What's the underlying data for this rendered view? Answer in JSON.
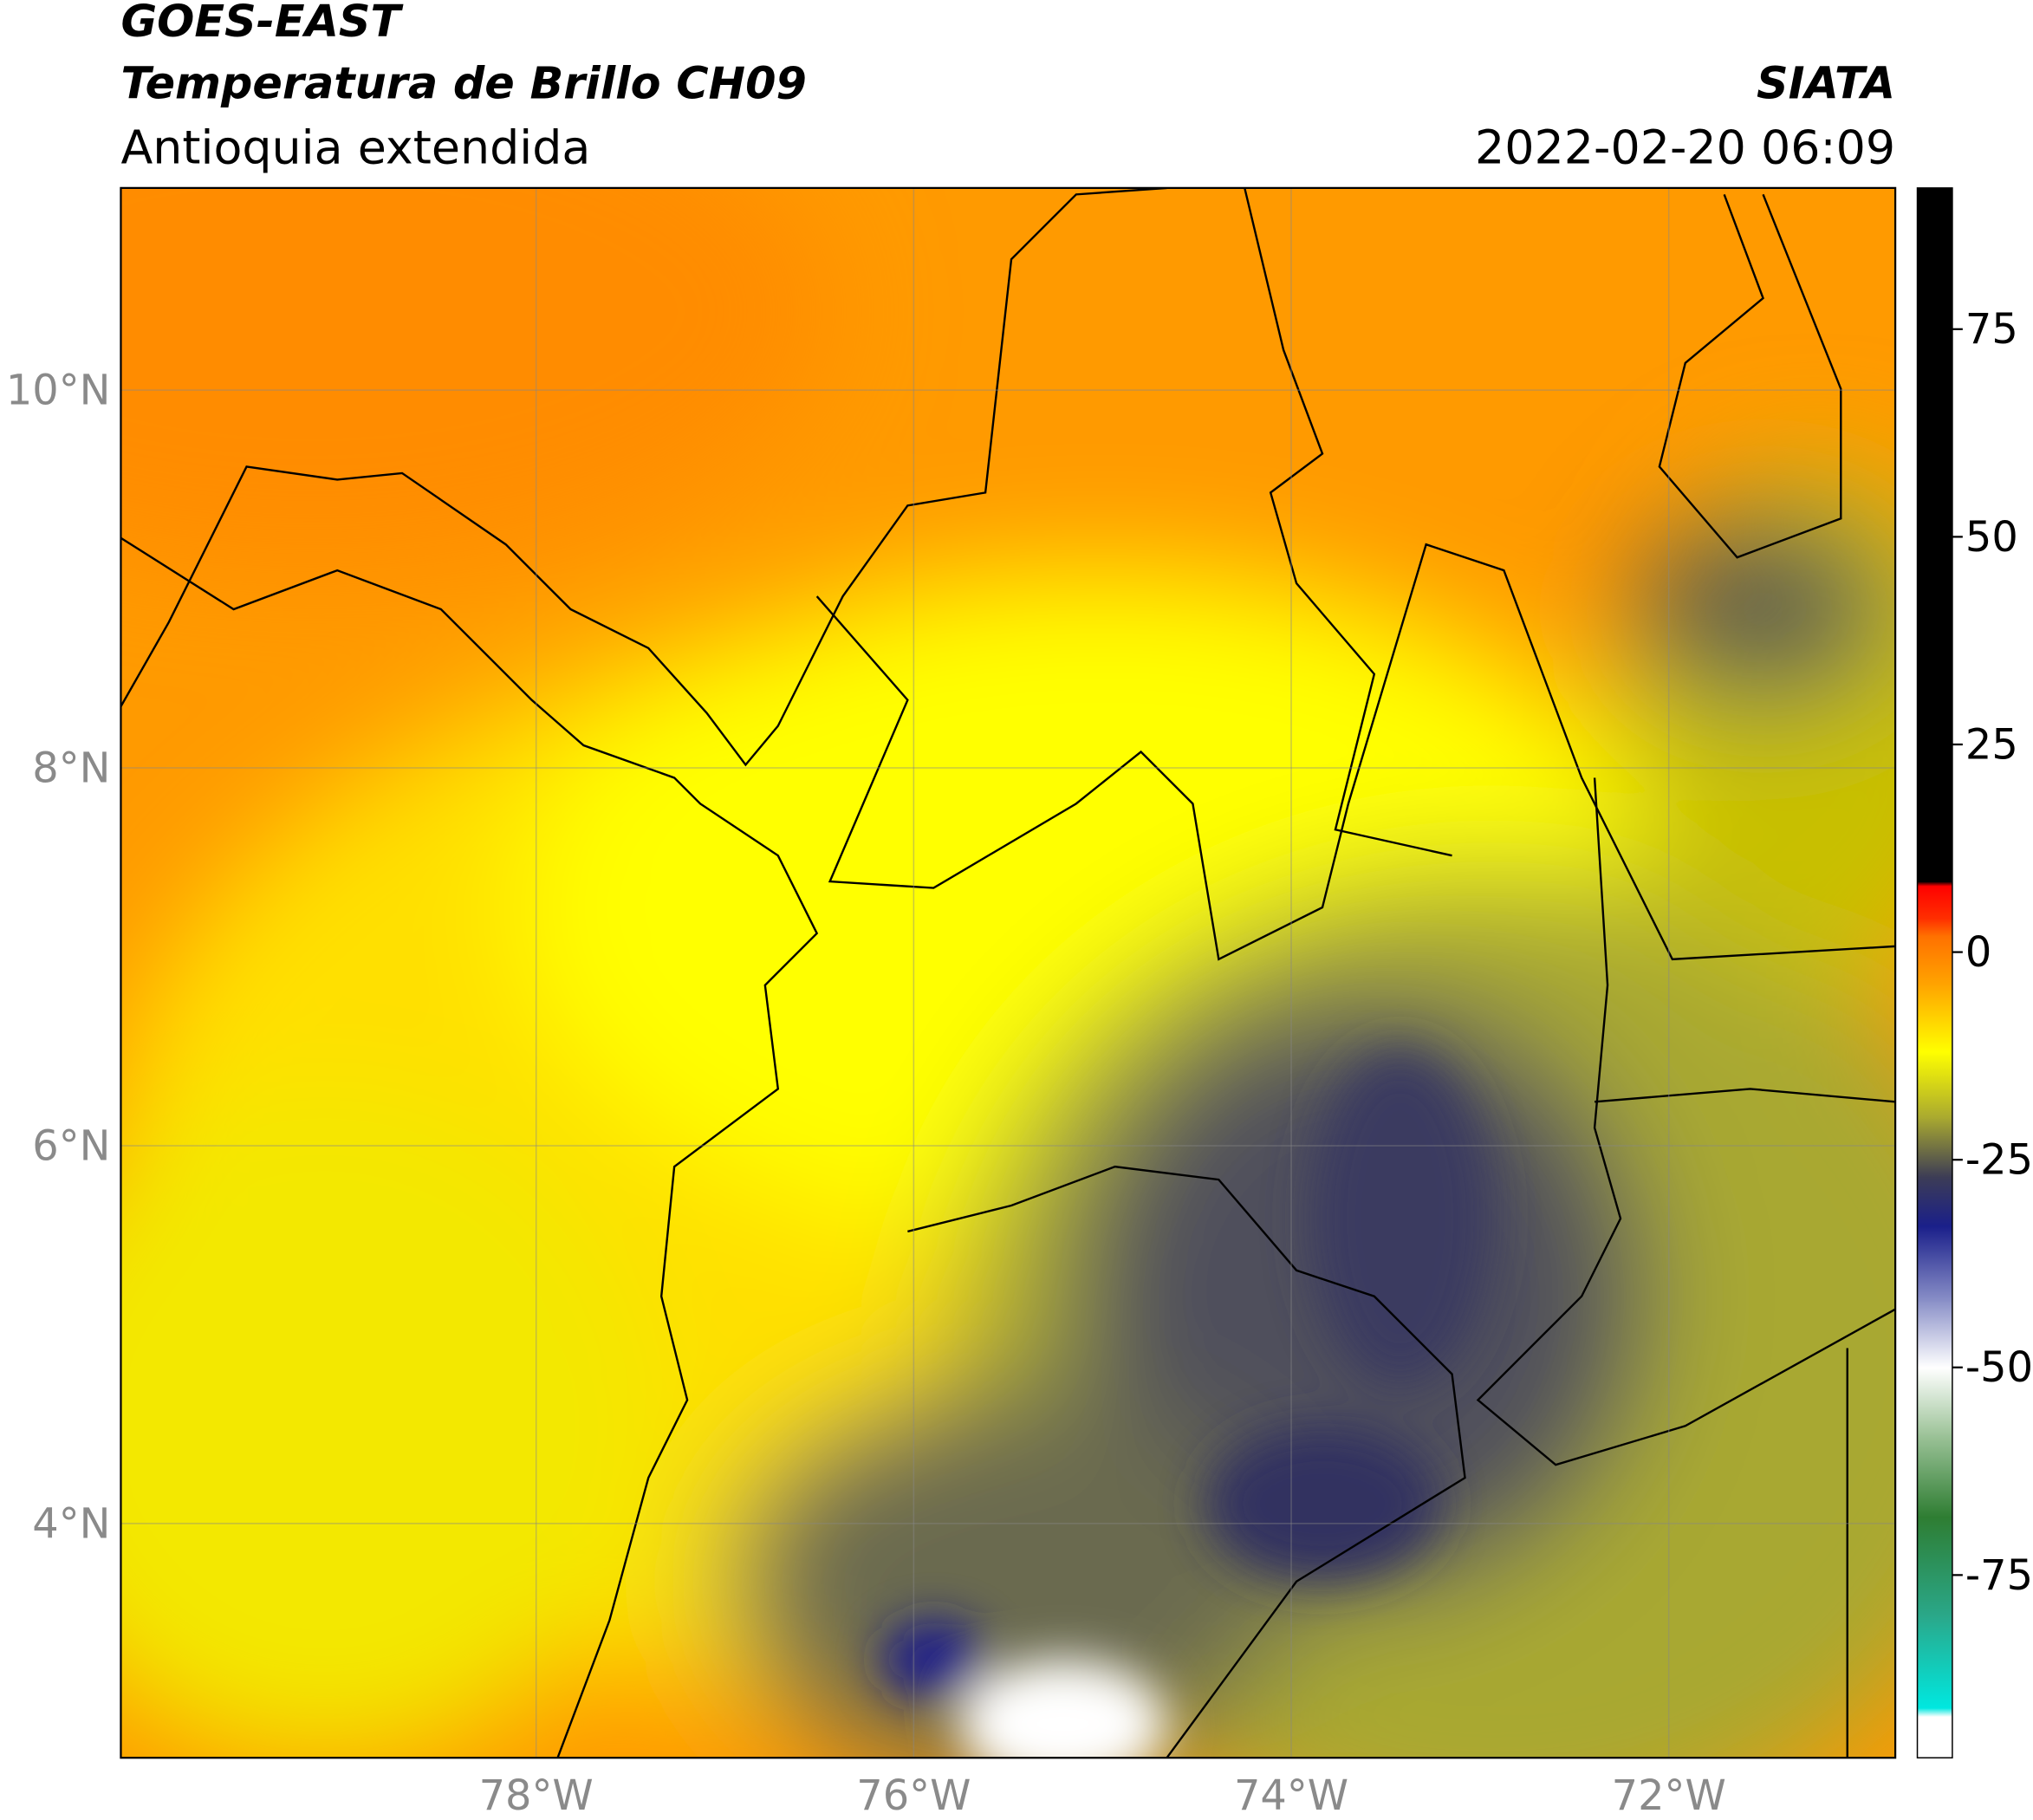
{
  "header": {
    "title": "GOES-EAST",
    "subtitle": "Temperatura de Brillo CH09",
    "region": "Antioquia extendida",
    "source": "SIATA",
    "datetime": "2022-02-20 06:09"
  },
  "map": {
    "lonlim": [
      -80.2,
      -70.8
    ],
    "latlim": [
      2.76,
      11.07
    ],
    "lonticks": [
      {
        "value": -78,
        "label": "78°W"
      },
      {
        "value": -76,
        "label": "76°W"
      },
      {
        "value": -74,
        "label": "74°W"
      },
      {
        "value": -72,
        "label": "72°W"
      }
    ],
    "latticks": [
      {
        "value": 4,
        "label": "4°N"
      },
      {
        "value": 6,
        "label": "6°N"
      },
      {
        "value": 8,
        "label": "8°N"
      },
      {
        "value": 10,
        "label": "10°N"
      }
    ],
    "grid": true
  },
  "colorbar": {
    "lim": [
      -97,
      92
    ],
    "ticks": [
      -75,
      -50,
      -25,
      0,
      25,
      50,
      75
    ],
    "stops": [
      {
        "value": -97,
        "color": "#ffffff"
      },
      {
        "value": -92,
        "color": "#ffffff"
      },
      {
        "value": -91,
        "color": "#00e8e0"
      },
      {
        "value": -80,
        "color": "#2aa88a"
      },
      {
        "value": -68,
        "color": "#2e7d32"
      },
      {
        "value": -58,
        "color": "#9ec49a"
      },
      {
        "value": -50,
        "color": "#ffffff"
      },
      {
        "value": -42,
        "color": "#8a90c8"
      },
      {
        "value": -33,
        "color": "#1a1f8a"
      },
      {
        "value": -27,
        "color": "#3d3d55"
      },
      {
        "value": -20,
        "color": "#a8a830"
      },
      {
        "value": -12,
        "color": "#ffff00"
      },
      {
        "value": -4,
        "color": "#ffa500"
      },
      {
        "value": 2,
        "color": "#ff7000"
      },
      {
        "value": 4,
        "color": "#ff3000"
      },
      {
        "value": 8,
        "color": "#ff0000"
      },
      {
        "value": 8.5,
        "color": "#000000"
      },
      {
        "value": 92,
        "color": "#000000"
      }
    ]
  }
}
